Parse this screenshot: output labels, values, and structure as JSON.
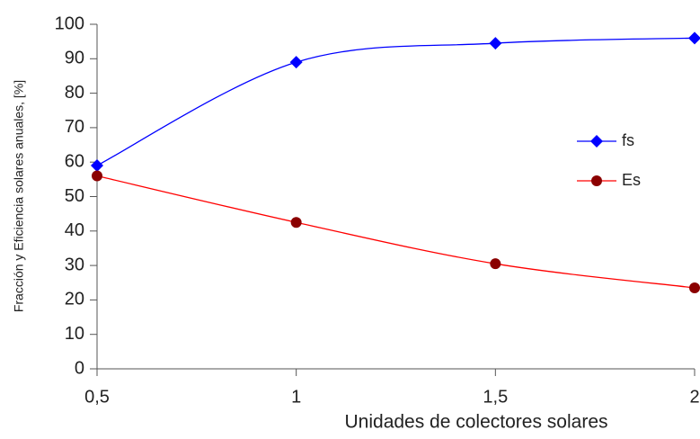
{
  "chart_data": {
    "type": "line",
    "x_label": "Unidades de colectores solares",
    "y_label": "Fracción y Eficiencia solares anuales, [%]",
    "x": [
      0.5,
      1,
      1.5,
      2
    ],
    "series": [
      {
        "name": "fs",
        "color": "#0000ff",
        "marker": "diamond",
        "values": [
          59,
          89,
          94.5,
          96
        ]
      },
      {
        "name": "Es",
        "color": "#ff0000",
        "marker_color": "#8b0000",
        "marker": "circle",
        "values": [
          56,
          42.5,
          30.5,
          23.5
        ]
      }
    ],
    "xlim": [
      0.5,
      2
    ],
    "xticks": [
      {
        "value": 0.5,
        "label": "0,5"
      },
      1,
      {
        "value": 1.5,
        "label": "1,5"
      },
      2
    ],
    "ylim": [
      0,
      100
    ],
    "yticks": [
      0,
      10,
      20,
      30,
      40,
      50,
      60,
      70,
      80,
      90,
      100
    ],
    "grid": false,
    "legend": "right"
  }
}
